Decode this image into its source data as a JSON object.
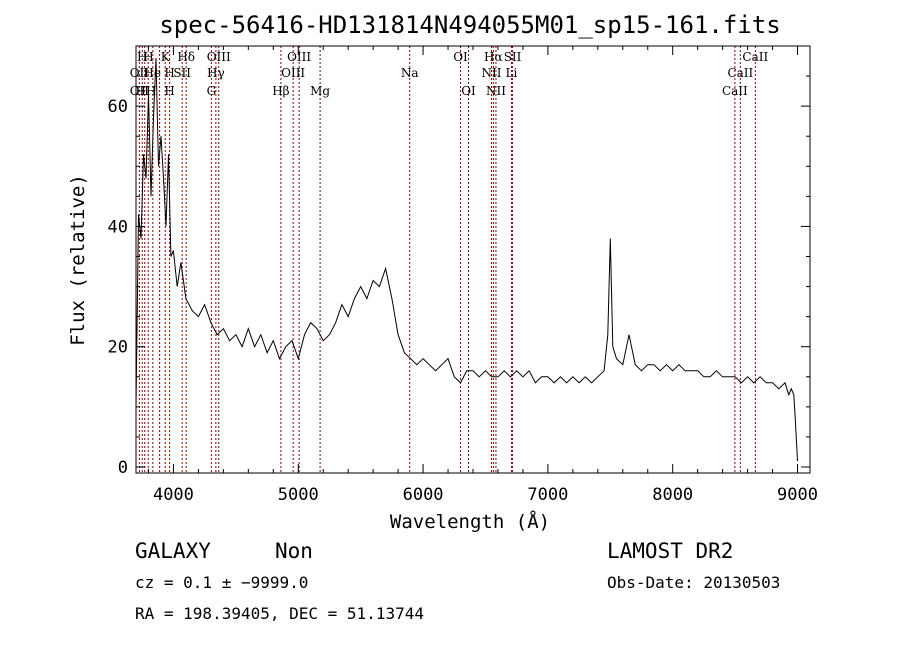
{
  "chart_data": {
    "type": "line",
    "title": "spec-56416-HD131814N494055M01_sp15-161.fits",
    "xlabel": "Wavelength (Å)",
    "ylabel": "Flux (relative)",
    "xlim": [
      3700,
      9100
    ],
    "ylim": [
      -1,
      70
    ],
    "xticks": [
      4000,
      5000,
      6000,
      7000,
      8000,
      9000
    ],
    "yticks": [
      0,
      20,
      40,
      60
    ],
    "grid": false,
    "series": [
      {
        "x": [
          3700,
          3720,
          3740,
          3760,
          3780,
          3800,
          3820,
          3840,
          3860,
          3880,
          3900,
          3920,
          3940,
          3960,
          3980,
          4000,
          4030,
          4060,
          4100,
          4150,
          4200,
          4250,
          4300,
          4350,
          4400,
          4450,
          4500,
          4550,
          4600,
          4650,
          4700,
          4750,
          4800,
          4850,
          4900,
          4950,
          5000,
          5050,
          5100,
          5150,
          5200,
          5250,
          5300,
          5350,
          5400,
          5450,
          5500,
          5550,
          5600,
          5650,
          5700,
          5750,
          5800,
          5850,
          5900,
          5950,
          6000,
          6050,
          6100,
          6150,
          6200,
          6250,
          6300,
          6350,
          6400,
          6450,
          6500,
          6550,
          6600,
          6650,
          6700,
          6750,
          6800,
          6850,
          6900,
          6950,
          7000,
          7050,
          7100,
          7150,
          7200,
          7250,
          7300,
          7350,
          7400,
          7450,
          7480,
          7500,
          7520,
          7550,
          7600,
          7650,
          7670,
          7700,
          7750,
          7800,
          7850,
          7900,
          7950,
          8000,
          8050,
          8100,
          8150,
          8200,
          8250,
          8300,
          8350,
          8400,
          8450,
          8500,
          8550,
          8600,
          8650,
          8700,
          8750,
          8800,
          8850,
          8900,
          8930,
          8950,
          8970,
          8985,
          9000
        ],
        "values": [
          10,
          42,
          38,
          52,
          48,
          62,
          45,
          58,
          68,
          50,
          55,
          48,
          40,
          52,
          35,
          36,
          30,
          34,
          28,
          26,
          25,
          27,
          24,
          22,
          23,
          21,
          22,
          20,
          23,
          20,
          22,
          19,
          21,
          18,
          20,
          21,
          18,
          22,
          24,
          23,
          21,
          22,
          24,
          27,
          25,
          28,
          30,
          28,
          31,
          30,
          33,
          28,
          22,
          19,
          18,
          17,
          18,
          17,
          16,
          17,
          18,
          15,
          14,
          16,
          16,
          15,
          16,
          15,
          15,
          16,
          15,
          16,
          15,
          16,
          14,
          15,
          15,
          14,
          15,
          14,
          15,
          14,
          15,
          14,
          15,
          16,
          22,
          38,
          20,
          18,
          17,
          22,
          20,
          17,
          16,
          17,
          17,
          16,
          17,
          16,
          17,
          16,
          16,
          16,
          15,
          15,
          16,
          15,
          15,
          15,
          14,
          15,
          14,
          15,
          14,
          14,
          13,
          14,
          12,
          13,
          12,
          7,
          1
        ]
      }
    ],
    "annotations": [
      {
        "label": "OII",
        "x": 3727,
        "row": 3
      },
      {
        "label": "OII",
        "x": 3727,
        "row": 2
      },
      {
        "label": "H",
        "x": 3750,
        "row": 1
      },
      {
        "label": "HH",
        "x": 3780,
        "row": 3
      },
      {
        "label": "H",
        "x": 3800,
        "row": 1
      },
      {
        "label": "He",
        "x": 3830,
        "row": 2
      },
      {
        "label": "K",
        "x": 3934,
        "row": 1
      },
      {
        "label": "H",
        "x": 3969,
        "row": 3
      },
      {
        "label": "H",
        "x": 3969,
        "row": 2
      },
      {
        "label": "SII",
        "x": 4070,
        "row": 2
      },
      {
        "label": "Hδ",
        "x": 4102,
        "row": 1
      },
      {
        "label": "OIII",
        "x": 4363,
        "row": 1
      },
      {
        "label": "Hγ",
        "x": 4340,
        "row": 2
      },
      {
        "label": "G",
        "x": 4304,
        "row": 3
      },
      {
        "label": "Hβ",
        "x": 4861,
        "row": 3
      },
      {
        "label": "OIII",
        "x": 5007,
        "row": 1
      },
      {
        "label": "OIII",
        "x": 4959,
        "row": 2
      },
      {
        "label": "Mg",
        "x": 5175,
        "row": 3
      },
      {
        "label": "Na",
        "x": 5893,
        "row": 2
      },
      {
        "label": "OI",
        "x": 6300,
        "row": 1
      },
      {
        "label": "OI",
        "x": 6364,
        "row": 3
      },
      {
        "label": "Hα",
        "x": 6563,
        "row": 1
      },
      {
        "label": "SII",
        "x": 6717,
        "row": 1
      },
      {
        "label": "NII",
        "x": 6548,
        "row": 2
      },
      {
        "label": "NII",
        "x": 6584,
        "row": 3
      },
      {
        "label": "Li",
        "x": 6708,
        "row": 2
      },
      {
        "label": "CaII",
        "x": 8662,
        "row": 1
      },
      {
        "label": "CaII",
        "x": 8542,
        "row": 2
      },
      {
        "label": "CaII",
        "x": 8498,
        "row": 3
      }
    ],
    "line_markers": [
      3727,
      3750,
      3770,
      3798,
      3835,
      3889,
      3934,
      3969,
      4070,
      4102,
      4304,
      4340,
      4363,
      4861,
      4959,
      5007,
      5175,
      5893,
      6300,
      6364,
      6548,
      6563,
      6584,
      6708,
      6717,
      8498,
      8542,
      8662
    ],
    "marker_color": "#8b0000"
  },
  "info": {
    "class": "GALAXY",
    "subclass": "Non",
    "survey": "LAMOST DR2",
    "cz": "cz = 0.1 ± −9999.0",
    "obs_date": "Obs-Date: 20130503",
    "radec": "RA = 198.39405, DEC =  51.13744"
  }
}
